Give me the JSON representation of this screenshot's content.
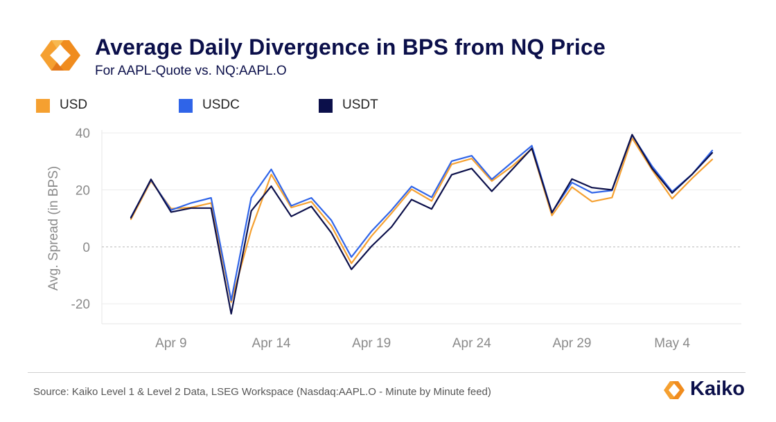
{
  "header": {
    "title": "Average Daily Divergence in BPS from NQ Price",
    "subtitle": "For AAPL-Quote vs. NQ:AAPL.O"
  },
  "colors": {
    "usd": "#f5a030",
    "usdc": "#2f64e8",
    "usdt": "#0b0f4a",
    "brand_orange": "#f08c1e",
    "brand_navy": "#0b0f4a"
  },
  "footer": {
    "source": "Source: Kaiko Level 1 & Level 2 Data, LSEG Workspace (Nasdaq:AAPL.O - Minute by Minute feed)",
    "brand_name": "Kaiko",
    "brand_icon": "kaiko-logo-icon"
  },
  "chart_data": {
    "type": "line",
    "title": "Average Daily Divergence in BPS from NQ Price",
    "ylabel": "Avg. Spread (in BPS)",
    "xlabel": "",
    "ylim": [
      -27,
      41
    ],
    "yticks": [
      "40",
      "20",
      "0",
      "-20"
    ],
    "ytick_values": [
      40,
      20,
      0,
      -20
    ],
    "xticks": [
      "Apr 9",
      "Apr 14",
      "Apr 19",
      "Apr 24",
      "Apr 29",
      "May 4"
    ],
    "xtick_dates": [
      "2025-04-09",
      "2025-04-14",
      "2025-04-19",
      "2025-04-24",
      "2025-04-29",
      "2025-05-04"
    ],
    "zero_line": "dashed",
    "grid": "horizontal",
    "legend_position": "top-left",
    "x": [
      "2025-04-07",
      "2025-04-08",
      "2025-04-09",
      "2025-04-10",
      "2025-04-11",
      "2025-04-12",
      "2025-04-13",
      "2025-04-14",
      "2025-04-15",
      "2025-04-16",
      "2025-04-17",
      "2025-04-18",
      "2025-04-19",
      "2025-04-20",
      "2025-04-21",
      "2025-04-22",
      "2025-04-23",
      "2025-04-24",
      "2025-04-25",
      "2025-04-26",
      "2025-04-27",
      "2025-04-28",
      "2025-04-29",
      "2025-04-30",
      "2025-05-01",
      "2025-05-02",
      "2025-05-03",
      "2025-05-04",
      "2025-05-05",
      "2025-05-06"
    ],
    "series": [
      {
        "name": "USD",
        "color": "#f5a030",
        "values": [
          9.7,
          23.1,
          13.4,
          13.8,
          15.4,
          -19.4,
          6.0,
          25.4,
          13.8,
          15.9,
          7.4,
          -5.8,
          3.8,
          11.8,
          20.2,
          16.1,
          29.0,
          31.0,
          23.1,
          28.2,
          34.4,
          11.0,
          21.0,
          15.9,
          17.3,
          38.2,
          27.0,
          16.9,
          24.1,
          30.7
        ]
      },
      {
        "name": "USDC",
        "color": "#2f64e8",
        "values": [
          10.4,
          23.5,
          12.9,
          15.4,
          17.2,
          -18.8,
          17.2,
          27.2,
          14.4,
          17.2,
          9.3,
          -3.6,
          5.5,
          12.9,
          21.2,
          17.4,
          30.1,
          32.0,
          23.7,
          29.6,
          35.5,
          12.1,
          22.6,
          19.0,
          19.8,
          39.2,
          28.3,
          19.4,
          25.5,
          33.8
        ]
      },
      {
        "name": "USDT",
        "color": "#0b0f4a",
        "values": [
          10.2,
          23.7,
          12.2,
          13.6,
          13.6,
          -23.5,
          12.6,
          21.3,
          10.7,
          14.2,
          4.9,
          -7.9,
          0.2,
          7.0,
          16.6,
          13.3,
          25.3,
          27.5,
          19.5,
          27.0,
          34.6,
          12.0,
          23.8,
          20.8,
          20.0,
          39.4,
          27.5,
          18.9,
          25.5,
          33.0
        ]
      }
    ]
  }
}
